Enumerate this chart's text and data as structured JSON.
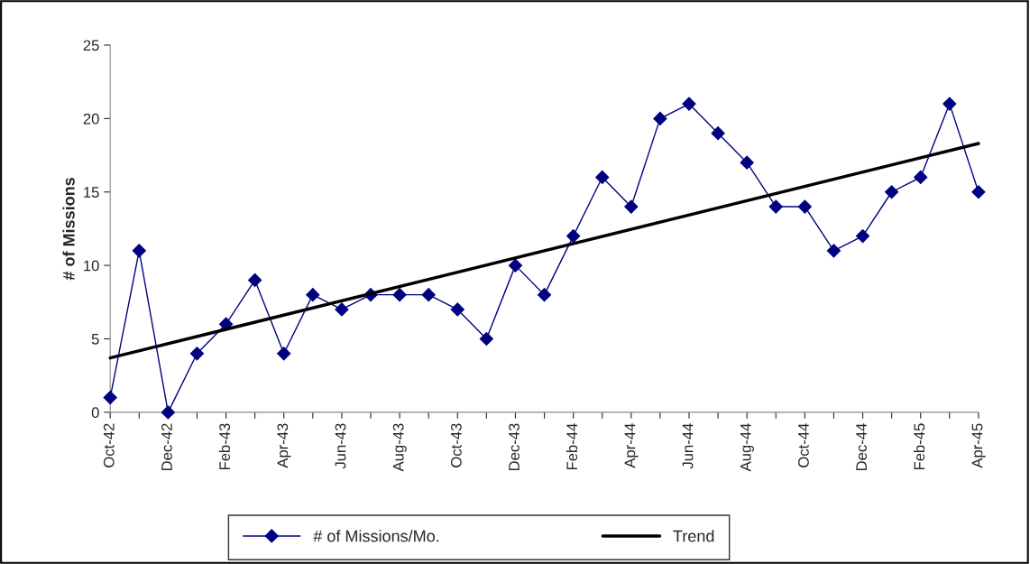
{
  "chart_data": {
    "type": "line",
    "ylabel": "# of Missions",
    "categories": [
      "Oct-42",
      null,
      "Dec-42",
      null,
      "Feb-43",
      null,
      "Apr-43",
      null,
      "Jun-43",
      null,
      "Aug-43",
      null,
      "Oct-43",
      null,
      "Dec-43",
      null,
      "Feb-44",
      null,
      "Apr-44",
      null,
      "Jun-44",
      null,
      "Aug-44",
      null,
      "Oct-44",
      null,
      "Dec-44",
      null,
      "Feb-45",
      null,
      "Apr-45"
    ],
    "series": [
      {
        "name": "# of Missions/Mo.",
        "color": "#000080",
        "marker": "diamond",
        "values": [
          1,
          11,
          0,
          4,
          6,
          9,
          4,
          8,
          7,
          8,
          8,
          8,
          7,
          5,
          10,
          8,
          12,
          16,
          14,
          20,
          21,
          19,
          17,
          14,
          14,
          11,
          12,
          15,
          16,
          21,
          15
        ]
      },
      {
        "name": "Trend",
        "color": "#000000",
        "type": "line",
        "marker": "none",
        "x": [
          "Oct-42",
          "Apr-45"
        ],
        "values": [
          3.7,
          18.3
        ]
      }
    ],
    "ylim": [
      0,
      25
    ],
    "yticks": [
      0,
      5,
      10,
      15,
      20,
      25
    ],
    "grid": false,
    "legend": "bottom"
  }
}
